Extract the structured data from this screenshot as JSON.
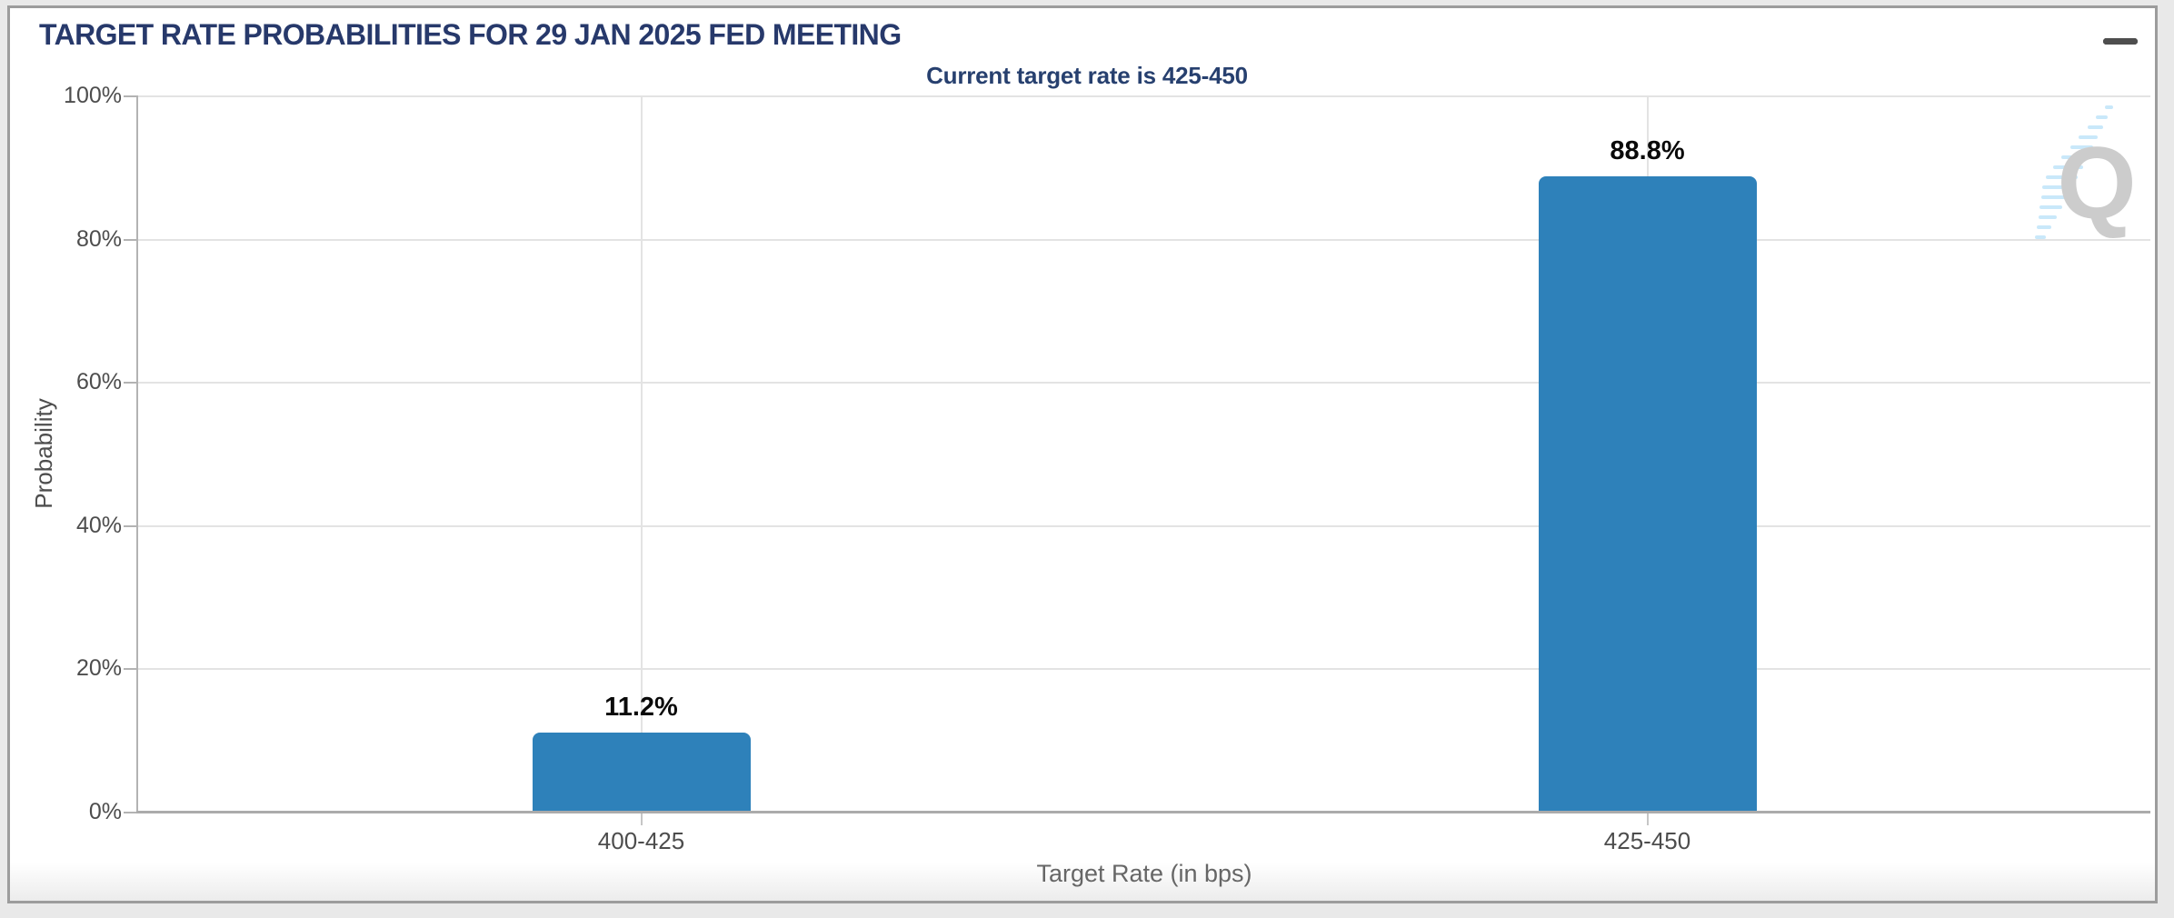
{
  "header": {
    "title": "TARGET RATE PROBABILITIES FOR 29 JAN 2025 FED MEETING",
    "menu_icon": "hamburger-icon"
  },
  "subtitle": "Current target rate is 425-450",
  "watermark": {
    "letter": "Q"
  },
  "chart_data": {
    "type": "bar",
    "title": "TARGET RATE PROBABILITIES FOR 29 JAN 2025 FED MEETING",
    "subtitle": "Current target rate is 425-450",
    "categories": [
      "400-425",
      "425-450"
    ],
    "values": [
      11.2,
      88.8
    ],
    "bar_labels": [
      "11.2%",
      "88.8%"
    ],
    "xlabel": "Target Rate (in bps)",
    "ylabel": "Probability",
    "ylim": [
      0,
      100
    ],
    "ytick_labels": [
      "0%",
      "20%",
      "40%",
      "60%",
      "80%",
      "100%"
    ],
    "grid": true,
    "legend": false,
    "bar_color": "#2e81ba"
  },
  "colors": {
    "title_navy": "#27396b",
    "bar_blue": "#2e81ba",
    "axis_gray": "#b3b3b3",
    "grid_gray": "#e3e3e3",
    "text_gray": "#4d4d4d",
    "card_border": "#9c9c9c",
    "page_background": "#e9e9e9",
    "watermark_gray": "#cccccc",
    "watermark_blue": "#c9e8fa"
  }
}
